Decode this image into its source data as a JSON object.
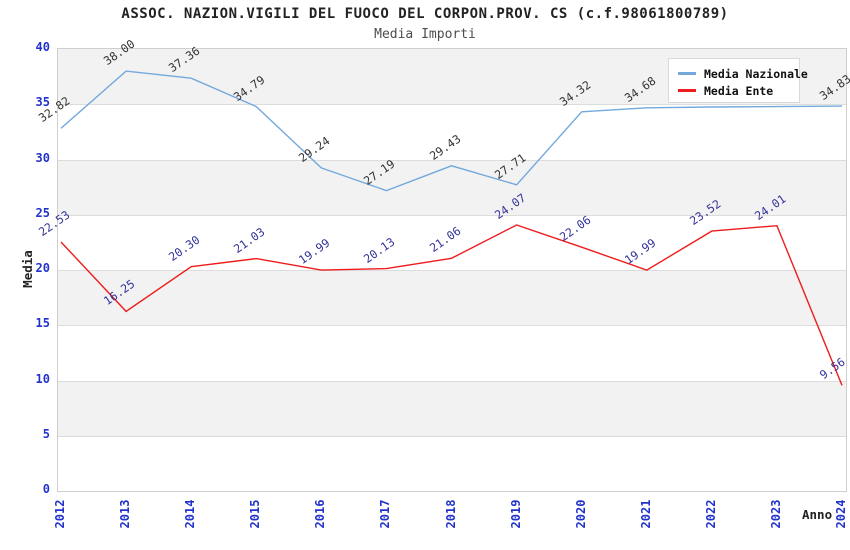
{
  "title": "ASSOC. NAZION.VIGILI DEL FUOCO DEL CORPON.PROV. CS (c.f.98061800789)",
  "subtitle": "Media Importi",
  "chart_data": {
    "type": "line",
    "title": "ASSOC. NAZION.VIGILI DEL FUOCO DEL CORPON.PROV. CS (c.f.98061800789)",
    "subtitle": "Media Importi",
    "xlabel": "Anno",
    "ylabel": "Media",
    "categories": [
      "2012",
      "2013",
      "2014",
      "2015",
      "2016",
      "2017",
      "2018",
      "2019",
      "2020",
      "2021",
      "2022",
      "2023",
      "2024"
    ],
    "ylim": [
      0,
      40
    ],
    "ytick_step": 5,
    "grid": "horizontal gridlines every 5 units with alternating gray/white bands",
    "legend_position": "top-right",
    "series": [
      {
        "name": "Media Nazionale",
        "color": "#74a9dc",
        "label_color": "#333333",
        "values": [
          32.82,
          38.0,
          37.36,
          34.79,
          29.24,
          27.19,
          29.43,
          27.71,
          34.32,
          34.68,
          34.75,
          34.79,
          34.83
        ],
        "labels": [
          "32.82",
          "38.00",
          "37.36",
          "34.79",
          "29.24",
          "27.19",
          "29.43",
          "27.71",
          "34.32",
          "34.68",
          "",
          "",
          "34.83"
        ]
      },
      {
        "name": "Media Ente",
        "color": "#ee1c1c",
        "label_color": "#333399",
        "values": [
          22.53,
          16.25,
          20.3,
          21.03,
          19.99,
          20.13,
          21.06,
          24.07,
          22.06,
          19.99,
          23.52,
          24.01,
          9.56
        ],
        "labels": [
          "22.53",
          "16.25",
          "20.30",
          "21.03",
          "19.99",
          "20.13",
          "21.06",
          "24.07",
          "22.06",
          "19.99",
          "23.52",
          "24.01",
          "9.56"
        ]
      }
    ],
    "colors": {
      "axis_ticks": "#2233cc",
      "band": "#f2f2f2",
      "gridline": "#dcdcdc",
      "plot_border": "#cfcfcf"
    }
  }
}
